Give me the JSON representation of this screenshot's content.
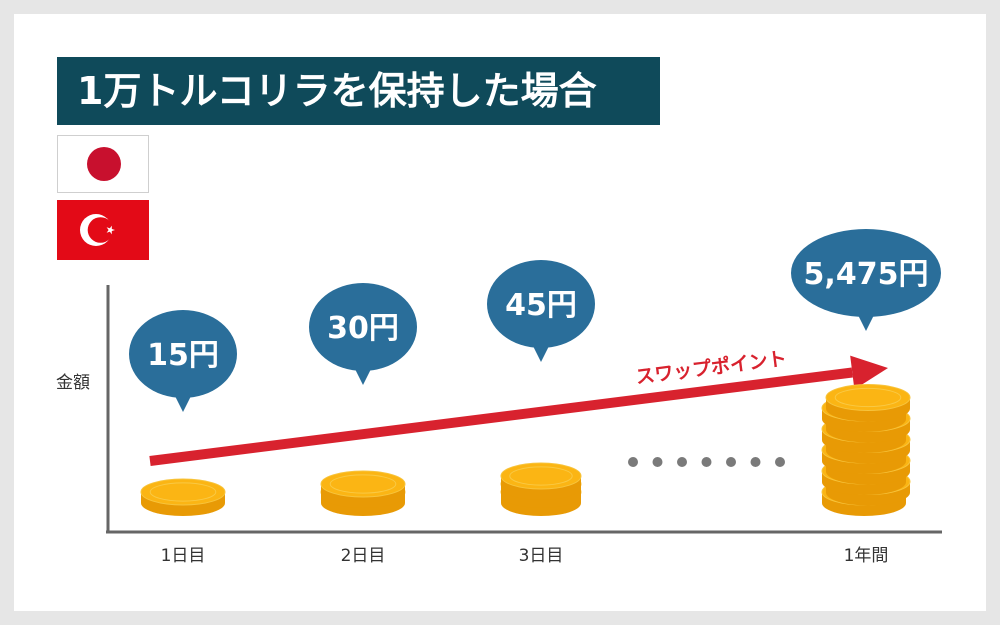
{
  "title": "1万トルコリラを保持した場合",
  "flags": [
    {
      "name": "japan-flag",
      "colors": {
        "field": "#ffffff",
        "disc": "#c8102e"
      }
    },
    {
      "name": "turkey-flag",
      "colors": {
        "field": "#e30a17",
        "emblem": "#ffffff"
      }
    }
  ],
  "colors": {
    "title_bg": "#0f4a5a",
    "bubble": "#2a6e9a",
    "arrow": "#d8222e",
    "coin_face": "#fbb514",
    "coin_edge": "#e89a05",
    "axis": "#666666",
    "dots": "#7a7a7a"
  },
  "chart_data": {
    "type": "bar",
    "title": "",
    "ylabel": "金額",
    "xlabel": "",
    "categories": [
      "1日目",
      "2日目",
      "3日目",
      "1年間"
    ],
    "values": [
      15,
      30,
      45,
      5475
    ],
    "value_labels": [
      "15円",
      "30円",
      "45円",
      "5,475円"
    ],
    "coin_stacks": [
      1,
      2,
      3,
      10
    ],
    "arrow_label": "スワップポイント",
    "grid": false,
    "legend": "none"
  }
}
